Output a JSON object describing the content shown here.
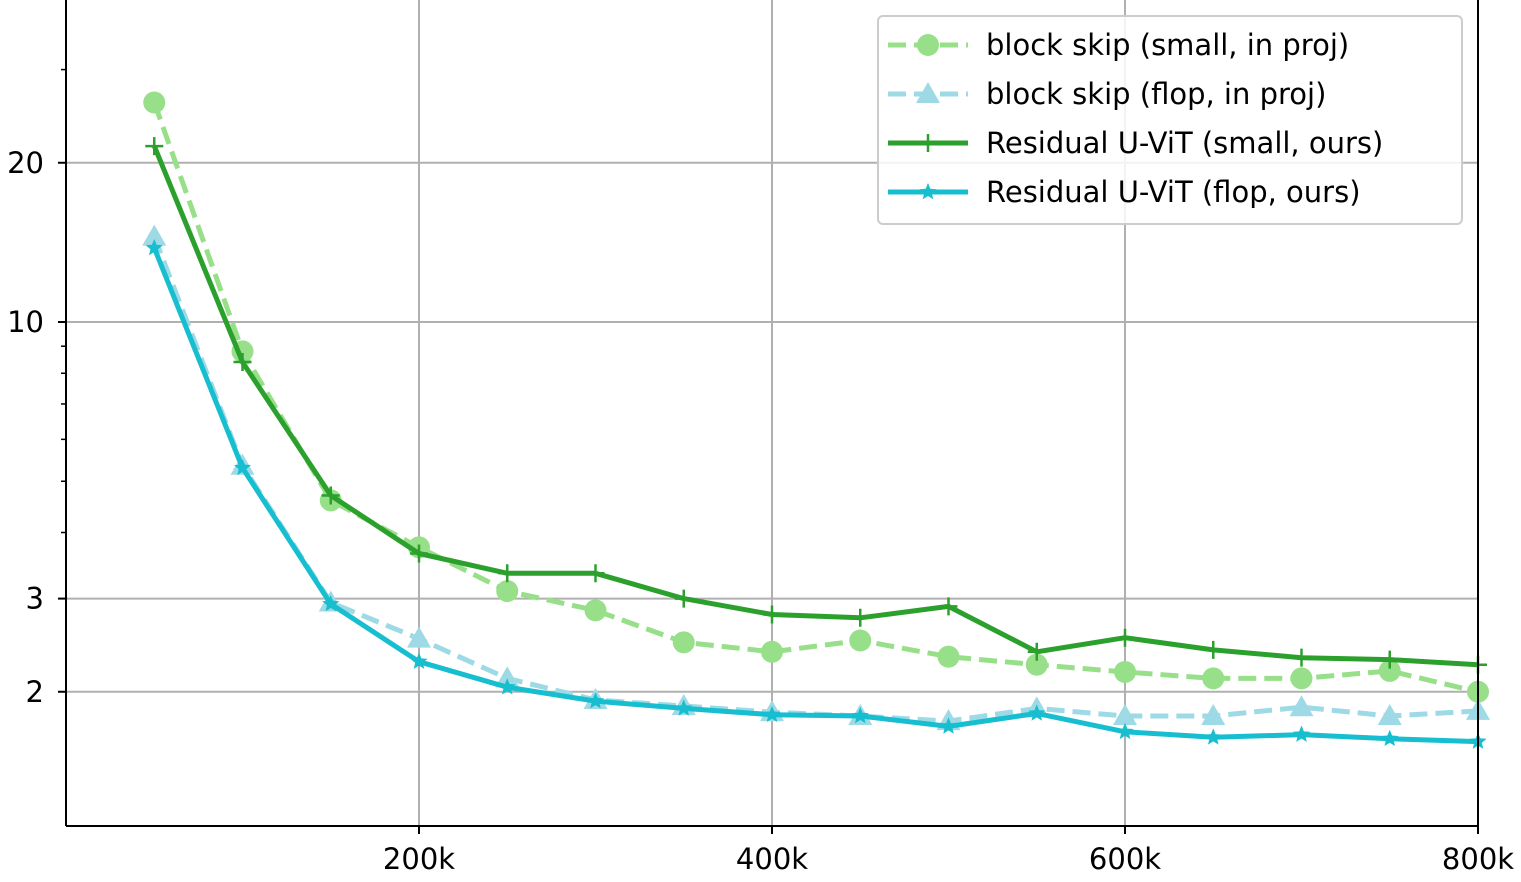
{
  "chart_data": {
    "type": "line",
    "title": "",
    "xlabel": "",
    "ylabel": "",
    "xlim": [
      0,
      800000
    ],
    "ylim": [
      1.5,
      33
    ],
    "y_scale": "log",
    "grid": true,
    "legend_position": "upper right",
    "x_ticks": [
      {
        "value": 200000,
        "label": "200k"
      },
      {
        "value": 400000,
        "label": "400k"
      },
      {
        "value": 600000,
        "label": "600k"
      },
      {
        "value": 800000,
        "label": "800k"
      }
    ],
    "y_ticks": [
      {
        "value": 2,
        "label": "2"
      },
      {
        "value": 3,
        "label": "3"
      },
      {
        "value": 10,
        "label": "10"
      },
      {
        "value": 20,
        "label": "20"
      }
    ],
    "x": [
      50000,
      100000,
      150000,
      200000,
      250000,
      300000,
      350000,
      400000,
      450000,
      500000,
      550000,
      600000,
      650000,
      700000,
      750000,
      800000
    ],
    "series": [
      {
        "name": "block skip (small, in proj)",
        "color": "#98df8a",
        "dash": "dashed",
        "marker": "circle",
        "values": [
          26.0,
          8.8,
          4.6,
          3.75,
          3.1,
          2.85,
          2.48,
          2.38,
          2.5,
          2.33,
          2.25,
          2.18,
          2.12,
          2.12,
          2.19,
          2.0
        ]
      },
      {
        "name": "block skip (flop, in proj)",
        "color": "#9edae5",
        "dash": "dashed",
        "marker": "triangle",
        "values": [
          14.5,
          5.35,
          2.95,
          2.52,
          2.12,
          1.93,
          1.88,
          1.83,
          1.8,
          1.76,
          1.86,
          1.8,
          1.8,
          1.87,
          1.8,
          1.84
        ]
      },
      {
        "name": "Residual U-ViT (small, ours)",
        "color": "#2ca02c",
        "dash": "solid",
        "marker": "plus",
        "values": [
          21.5,
          8.4,
          4.7,
          3.65,
          3.35,
          3.35,
          3.0,
          2.8,
          2.76,
          2.9,
          2.38,
          2.53,
          2.4,
          2.32,
          2.3,
          2.25
        ]
      },
      {
        "name": "Residual U-ViT (flop, ours)",
        "color": "#17becf",
        "dash": "solid",
        "marker": "star",
        "values": [
          13.8,
          5.3,
          2.93,
          2.28,
          2.04,
          1.92,
          1.86,
          1.81,
          1.8,
          1.72,
          1.82,
          1.68,
          1.64,
          1.66,
          1.63,
          1.61
        ]
      }
    ]
  }
}
